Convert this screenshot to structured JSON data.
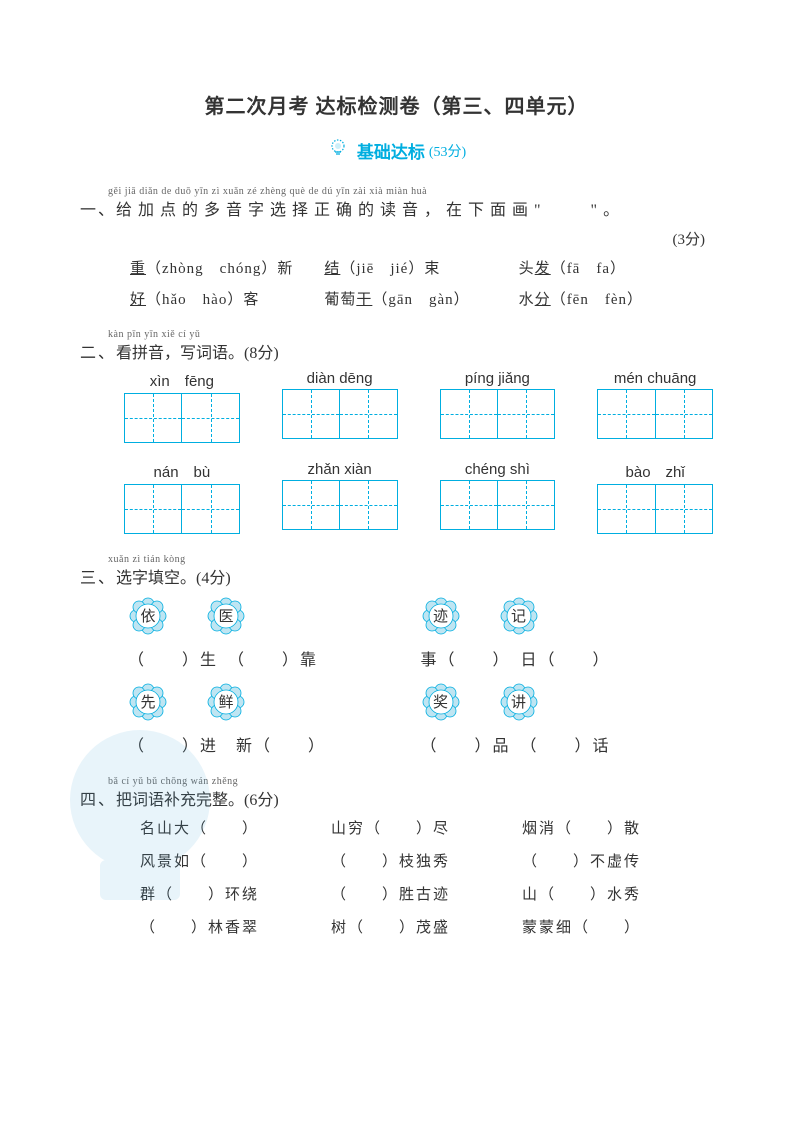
{
  "title": "第二次月考 达标检测卷（第三、四单元）",
  "badge": {
    "text": "基础达标",
    "score": "(53分)"
  },
  "colors": {
    "accent": "#00aee0",
    "text": "#333333",
    "pinyin": "#666666"
  },
  "q1": {
    "ruby": "gěi jiā diǎn de duō yīn zì xuǎn zé zhèng què de dú yīn   zài xià miàn huà",
    "num": "一、",
    "text": "给加点的多音字选择正确的读音，在下面画\"　　\"。",
    "score": "(3分)",
    "rows": [
      [
        {
          "char": "重",
          "opts": "（zhòng　chóng）新"
        },
        {
          "char": "结",
          "opts": "（jiē　jié）束"
        },
        {
          "pre": "头",
          "char": "发",
          "opts": "（fā　fa）"
        }
      ],
      [
        {
          "char": "好",
          "opts": "（hǎo　hào）客"
        },
        {
          "pre": "葡萄",
          "char": "干",
          "opts": "（gān　gàn）"
        },
        {
          "pre": "水",
          "char": "分",
          "opts": "（fēn　fèn）"
        }
      ]
    ]
  },
  "q2": {
    "ruby": "kàn pīn yīn   xiě cí yǔ",
    "num": "二、",
    "text": "看拼音，写词语。",
    "score": "(8分)",
    "row1": [
      "xìn　fēng",
      "diàn dēng",
      "píng jiǎng",
      "mén chuāng"
    ],
    "row2": [
      "nán　bù",
      "zhǎn xiàn",
      "chéng shì",
      "bào　zhǐ"
    ]
  },
  "q3": {
    "ruby": "xuǎn zì tián kòng",
    "num": "三、",
    "text": "选字填空。",
    "score": "(4分)",
    "pairs": [
      {
        "left": [
          "依",
          "医"
        ],
        "right": [
          "迹",
          "记"
        ]
      },
      {
        "left": [
          "先",
          "鲜"
        ],
        "right": [
          "奖",
          "讲"
        ]
      }
    ],
    "fills": [
      {
        "l": "（　　）生　（　　）靠",
        "r": "事（　　）　日（　　）"
      },
      {
        "l": "（　　）进　新（　　）",
        "r": "（　　）品　（　　）话"
      }
    ]
  },
  "q4": {
    "ruby": "bǎ cí yǔ bǔ chōng wán zhěng",
    "num": "四、",
    "text": "把词语补充完整。",
    "score": "(6分)",
    "rows": [
      [
        "名山大（　　）",
        "山穷（　　）尽",
        "烟消（　　）散"
      ],
      [
        "风景如（　　）",
        "（　　）枝独秀",
        "（　　）不虚传"
      ],
      [
        "群（　　）环绕",
        "（　　）胜古迹",
        "山（　　）水秀"
      ],
      [
        "（　　）林香翠",
        "树（　　）茂盛",
        "蒙蒙细（　　）"
      ]
    ]
  }
}
